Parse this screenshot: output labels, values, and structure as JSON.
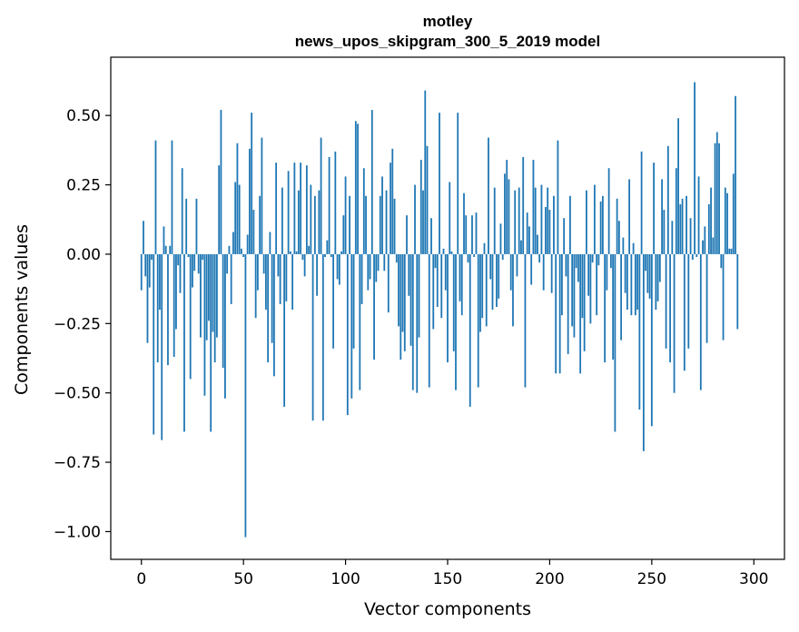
{
  "chart_data": {
    "type": "bar",
    "title_line1": "motley",
    "title_line2": "news_upos_skipgram_300_5_2019 model",
    "xlabel": "Vector components",
    "ylabel": "Components values",
    "xlim": [
      -15,
      315
    ],
    "ylim": [
      -1.1,
      0.71
    ],
    "xticks": [
      0,
      50,
      100,
      150,
      200,
      250,
      300
    ],
    "xtick_labels": [
      "0",
      "50",
      "100",
      "150",
      "200",
      "250",
      "300"
    ],
    "yticks": [
      0.5,
      0.25,
      0.0,
      -0.25,
      -0.5,
      -0.75,
      -1.0
    ],
    "ytick_labels": [
      "0.50",
      "0.25",
      "0.00",
      "−0.25",
      "−0.50",
      "−0.75",
      "−1.00"
    ],
    "bar_color": "#1f77b4",
    "values": [
      -0.13,
      0.12,
      -0.08,
      -0.32,
      -0.12,
      -0.02,
      -0.65,
      0.41,
      -0.39,
      -0.2,
      -0.67,
      0.1,
      0.03,
      -0.4,
      0.03,
      0.41,
      -0.37,
      -0.27,
      -0.04,
      -0.14,
      0.31,
      -0.64,
      0.2,
      -0.01,
      -0.45,
      -0.12,
      -0.06,
      0.2,
      -0.07,
      -0.3,
      -0.02,
      -0.51,
      -0.31,
      -0.24,
      -0.64,
      -0.28,
      -0.39,
      -0.3,
      0.32,
      0.52,
      -0.41,
      -0.52,
      -0.07,
      0.03,
      -0.18,
      0.08,
      0.26,
      0.4,
      0.25,
      0.02,
      -0.01,
      -1.02,
      0.07,
      0.38,
      0.51,
      0.16,
      -0.23,
      -0.13,
      0.21,
      0.42,
      -0.07,
      -0.2,
      -0.39,
      0.08,
      -0.32,
      -0.44,
      0.33,
      -0.08,
      -0.18,
      0.24,
      -0.55,
      -0.17,
      0.3,
      0.01,
      -0.2,
      0.33,
      0.01,
      0.23,
      0.33,
      -0.02,
      -0.08,
      0.32,
      0.03,
      0.25,
      -0.6,
      0.21,
      -0.15,
      0.23,
      0.42,
      -0.6,
      -0.01,
      0.05,
      0.35,
      -0.01,
      -0.34,
      0.37,
      -0.09,
      -0.11,
      0.01,
      0.14,
      0.28,
      -0.58,
      0.21,
      -0.52,
      -0.34,
      0.48,
      0.47,
      -0.49,
      -0.18,
      0.31,
      0.21,
      -0.13,
      -0.09,
      0.52,
      -0.38,
      -0.1,
      -0.06,
      0.21,
      0.28,
      -0.06,
      0.23,
      -0.21,
      0.33,
      0.38,
      0.2,
      -0.03,
      -0.26,
      -0.38,
      -0.28,
      -0.35,
      0.14,
      -0.15,
      -0.33,
      -0.49,
      0.25,
      -0.5,
      -0.3,
      0.34,
      0.23,
      0.59,
      0.39,
      -0.48,
      0.13,
      -0.27,
      -0.05,
      -0.19,
      0.51,
      -0.23,
      0.02,
      -0.13,
      -0.39,
      0.26,
      0.01,
      -0.35,
      -0.49,
      0.51,
      -0.17,
      -0.22,
      0.22,
      0.14,
      -0.03,
      -0.55,
      0.14,
      -0.01,
      0.15,
      -0.48,
      -0.28,
      -0.23,
      0.04,
      -0.26,
      0.42,
      -0.09,
      -0.2,
      0.24,
      -0.19,
      -0.16,
      0.11,
      -0.02,
      0.29,
      0.34,
      0.27,
      -0.13,
      -0.26,
      0.23,
      -0.08,
      0.24,
      0.05,
      0.35,
      -0.48,
      0.15,
      0.1,
      -0.11,
      0.34,
      0.24,
      0.07,
      -0.03,
      0.25,
      -0.13,
      0.17,
      0.24,
      0.16,
      -0.14,
      0.21,
      -0.43,
      0.41,
      -0.43,
      -0.22,
      0.13,
      -0.08,
      -0.36,
      0.21,
      -0.26,
      -0.3,
      -0.05,
      -0.1,
      -0.43,
      -0.23,
      -0.35,
      0.23,
      -0.15,
      -0.25,
      -0.03,
      0.25,
      -0.22,
      -0.04,
      0.19,
      0.21,
      -0.39,
      -0.13,
      0.31,
      -0.05,
      -0.38,
      -0.64,
      0.2,
      0.12,
      -0.31,
      0.06,
      -0.14,
      -0.2,
      0.27,
      -0.22,
      0.04,
      -0.22,
      -0.2,
      -0.56,
      0.37,
      -0.71,
      -0.06,
      -0.14,
      -0.16,
      -0.62,
      0.33,
      -0.2,
      -0.17,
      -0.1,
      0.27,
      0.16,
      -0.34,
      0.39,
      -0.39,
      0.12,
      -0.5,
      0.31,
      0.49,
      0.18,
      0.2,
      -0.42,
      0.21,
      -0.34,
      0.13,
      -0.02,
      0.62,
      -0.01,
      0.28,
      -0.49,
      0.05,
      0.1,
      -0.32,
      0.18,
      0.24,
      0.06,
      0.4,
      0.44,
      0.4,
      -0.05,
      -0.31,
      0.24,
      0.22,
      0.02,
      0.02,
      0.29,
      0.57,
      -0.27
    ]
  }
}
